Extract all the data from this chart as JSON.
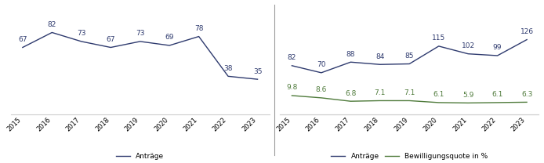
{
  "left": {
    "years": [
      2015,
      2016,
      2017,
      2018,
      2019,
      2020,
      2021,
      2022,
      2023
    ],
    "antraege": [
      67,
      82,
      73,
      67,
      73,
      69,
      78,
      38,
      35
    ],
    "line_color": "#2E3A6E",
    "legend_label": "Anträge",
    "ylim": [
      0,
      95
    ]
  },
  "right": {
    "years": [
      2015,
      2016,
      2017,
      2018,
      2019,
      2020,
      2021,
      2022,
      2023
    ],
    "antraege": [
      82,
      70,
      88,
      84,
      85,
      115,
      102,
      99,
      126
    ],
    "bewilligungsquote": [
      9.8,
      8.6,
      6.8,
      7.1,
      7.1,
      6.1,
      5.9,
      6.1,
      6.3
    ],
    "antraege_color": "#2E3A6E",
    "bewilligungs_color": "#4E7A3A",
    "legend_label_antraege": "Anträge",
    "legend_label_bewilligungs": "Bewilligungsquote in %",
    "ylim_antraege": [
      0,
      160
    ],
    "ylim_bewilligungs": [
      0,
      50
    ]
  },
  "background_color": "#FFFFFF",
  "grid_color": "#CCCCCC",
  "label_fontsize": 6.5,
  "tick_fontsize": 6.0,
  "legend_fontsize": 6.5,
  "divider_color": "#999999"
}
